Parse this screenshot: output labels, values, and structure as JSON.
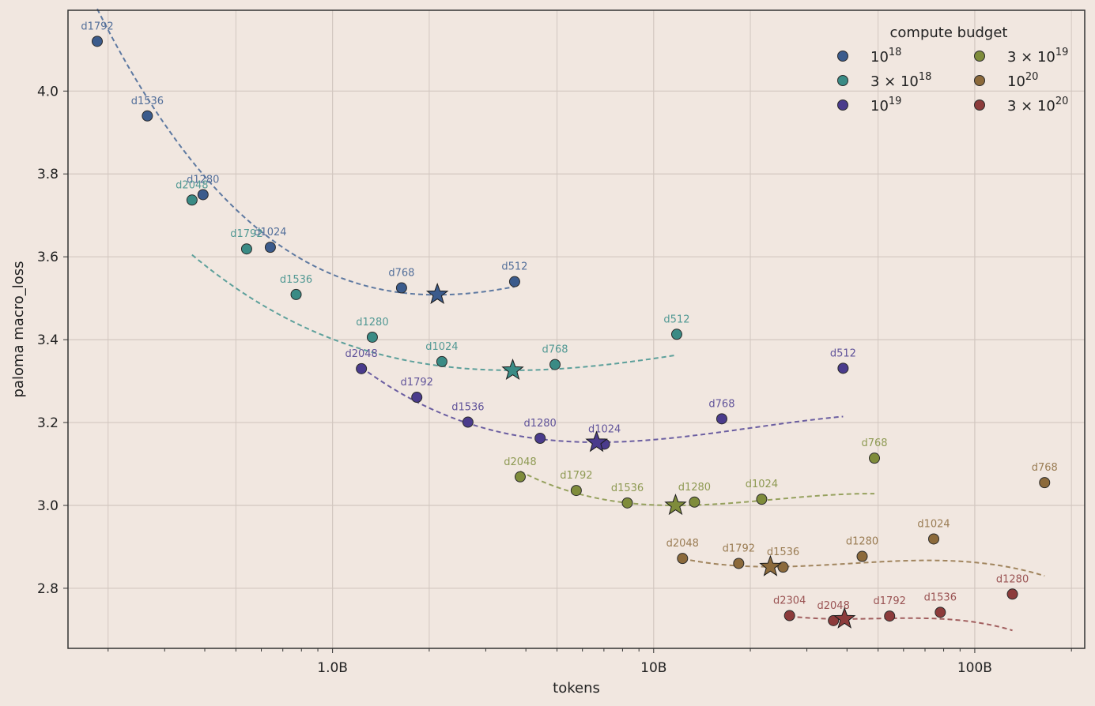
{
  "chart_data": {
    "type": "scatter",
    "title": "",
    "xlabel": "tokens",
    "ylabel": "paloma macro_loss",
    "xscale": "log",
    "xlim": [
      150000000,
      220000000000
    ],
    "ylim": [
      2.655,
      4.195
    ],
    "xticks": [
      {
        "value": 1000000000,
        "label": "1.0B"
      },
      {
        "value": 10000000000,
        "label": "10B"
      },
      {
        "value": 100000000000,
        "label": "100B"
      }
    ],
    "yticks": [
      {
        "value": 2.8,
        "label": "2.8"
      },
      {
        "value": 3.0,
        "label": "3.0"
      },
      {
        "value": 3.2,
        "label": "3.2"
      },
      {
        "value": 3.4,
        "label": "3.4"
      },
      {
        "value": 3.6,
        "label": "3.6"
      },
      {
        "value": 3.8,
        "label": "3.8"
      },
      {
        "value": 4.0,
        "label": "4.0"
      }
    ],
    "grid": true,
    "legend": {
      "title": "compute budget",
      "placement": "top-right",
      "columns": 2
    },
    "series": [
      {
        "name": "10^18",
        "legend_base": "10",
        "legend_exp": "18",
        "legend_mult": "",
        "color": "#3b5b8c",
        "points": [
          {
            "x": 185000000,
            "y": 4.12,
            "label": "d1792"
          },
          {
            "x": 265000000,
            "y": 3.94,
            "label": "d1536"
          },
          {
            "x": 395000000,
            "y": 3.75,
            "label": "d1280"
          },
          {
            "x": 640000000,
            "y": 3.623,
            "label": "d1024"
          },
          {
            "x": 1640000000,
            "y": 3.525,
            "label": "d768"
          },
          {
            "x": 3690000000,
            "y": 3.54,
            "label": "d512"
          }
        ],
        "optimum": {
          "x": 2120000000,
          "y": 3.509
        },
        "fit": {
          "x": [
            185000000,
            3690000000
          ],
          "a": 0.392,
          "b": -0.2107,
          "c": 3.5082
        }
      },
      {
        "name": "3×10^18",
        "legend_base": "10",
        "legend_exp": "18",
        "legend_mult": "3 × ",
        "color": "#3a8b85",
        "points": [
          {
            "x": 365000000,
            "y": 3.737,
            "label": "d2048"
          },
          {
            "x": 540000000,
            "y": 3.619,
            "label": "d1792"
          },
          {
            "x": 770000000,
            "y": 3.509,
            "label": "d1536"
          },
          {
            "x": 1330000000,
            "y": 3.406,
            "label": "d1280"
          },
          {
            "x": 2190000000,
            "y": 3.347,
            "label": "d1024"
          },
          {
            "x": 4930000000,
            "y": 3.34,
            "label": "d768"
          },
          {
            "x": 11800000000,
            "y": 3.413,
            "label": "d512"
          }
        ],
        "optimum": {
          "x": 3640000000,
          "y": 3.326
        },
        "fit": {
          "x": [
            365000000,
            11800000000
          ],
          "a": 0.188,
          "b": -0.0917,
          "c": 3.326
        }
      },
      {
        "name": "10^19",
        "legend_base": "10",
        "legend_exp": "19",
        "legend_mult": "",
        "color": "#4a3b8c",
        "points": [
          {
            "x": 1230000000,
            "y": 3.33,
            "label": "d2048"
          },
          {
            "x": 1830000000,
            "y": 3.261,
            "label": "d1792"
          },
          {
            "x": 2640000000,
            "y": 3.201,
            "label": "d1536"
          },
          {
            "x": 4430000000,
            "y": 3.162,
            "label": "d1280"
          },
          {
            "x": 7030000000,
            "y": 3.148,
            "label": "d1024"
          },
          {
            "x": 16300000000,
            "y": 3.209,
            "label": "d768"
          },
          {
            "x": 38900000000,
            "y": 3.331,
            "label": "d512"
          }
        ],
        "optimum": {
          "x": 6640000000,
          "y": 3.152
        },
        "fit": {
          "x": [
            1230000000,
            38900000000
          ],
          "a": 0.224,
          "b": -0.1546,
          "c": 3.1524
        }
      },
      {
        "name": "3×10^19",
        "legend_base": "10",
        "legend_exp": "19",
        "legend_mult": "3 × ",
        "color": "#7f8c3b",
        "points": [
          {
            "x": 3840000000,
            "y": 3.069,
            "label": "d2048"
          },
          {
            "x": 5740000000,
            "y": 3.036,
            "label": "d1792"
          },
          {
            "x": 8280000000,
            "y": 3.006,
            "label": "d1536"
          },
          {
            "x": 13400000000,
            "y": 3.008,
            "label": "d1280"
          },
          {
            "x": 21700000000,
            "y": 3.015,
            "label": "d1024"
          },
          {
            "x": 48700000000,
            "y": 3.114,
            "label": "d768"
          }
        ],
        "optimum": {
          "x": 11700000000,
          "y": 3.0
        },
        "fit": {
          "x": [
            3840000000,
            48700000000
          ],
          "a": 0.23,
          "b": -0.2519,
          "c": 3.0
        }
      },
      {
        "name": "10^20",
        "legend_base": "10",
        "legend_exp": "20",
        "legend_mult": "",
        "color": "#8c6a3b",
        "points": [
          {
            "x": 12300000000,
            "y": 2.872,
            "label": "d2048"
          },
          {
            "x": 18400000000,
            "y": 2.86,
            "label": "d1792"
          },
          {
            "x": 25300000000,
            "y": 2.851,
            "label": "d1536"
          },
          {
            "x": 44600000000,
            "y": 2.877,
            "label": "d1280"
          },
          {
            "x": 74500000000,
            "y": 2.919,
            "label": "d1024"
          },
          {
            "x": 165000000000,
            "y": 3.055,
            "label": "d768"
          }
        ],
        "optimum": {
          "x": 23100000000,
          "y": 2.852
        },
        "fit": {
          "x": [
            12300000000,
            165000000000
          ],
          "a": 0.19,
          "b": -0.2581,
          "c": 2.852
        }
      },
      {
        "name": "3×10^20",
        "legend_base": "10",
        "legend_exp": "20",
        "legend_mult": "3 × ",
        "color": "#8c3b3b",
        "points": [
          {
            "x": 26500000000,
            "y": 2.734,
            "label": "d2304"
          },
          {
            "x": 36300000000,
            "y": 2.722,
            "label": "d2048"
          },
          {
            "x": 54300000000,
            "y": 2.733,
            "label": "d1792"
          },
          {
            "x": 78100000000,
            "y": 2.742,
            "label": "d1536"
          },
          {
            "x": 131000000000,
            "y": 2.786,
            "label": "d1280"
          }
        ],
        "optimum": {
          "x": 39300000000,
          "y": 2.726
        },
        "fit": {
          "x": [
            26500000000,
            131000000000
          ],
          "a": 0.14,
          "b": -0.4608,
          "c": 2.726
        }
      }
    ]
  }
}
